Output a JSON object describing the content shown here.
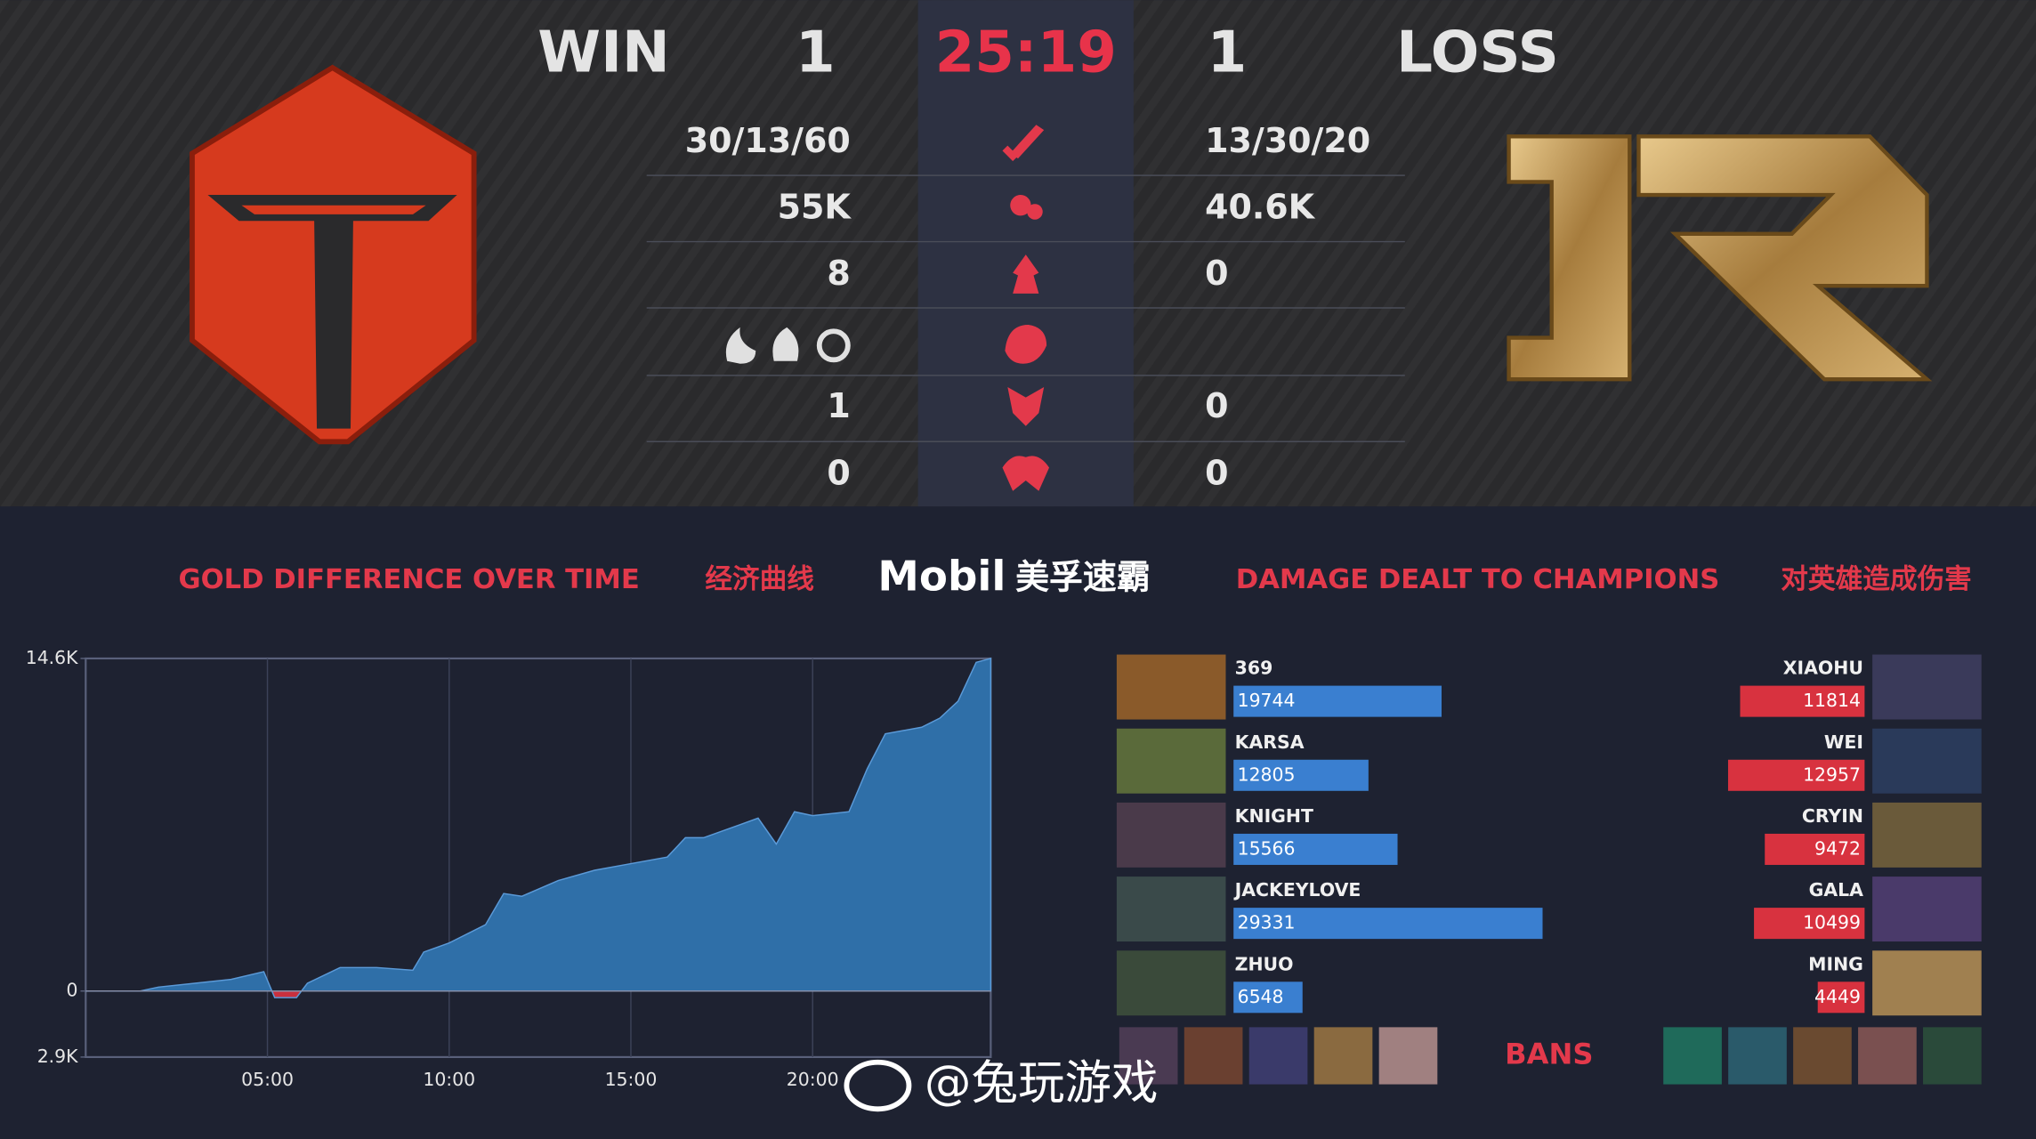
{
  "header": {
    "result_left": "WIN",
    "score_left": 1,
    "timer": "25:19",
    "score_right": 1,
    "result_right": "LOSS"
  },
  "stats": {
    "kda": {
      "left": "30/13/60",
      "right": "13/30/20"
    },
    "gold": {
      "left": "55K",
      "right": "40.6K"
    },
    "towers": {
      "left": 8,
      "right": 0
    },
    "barons": {
      "left": 1,
      "right": 0
    },
    "heralds": {
      "left": 0,
      "right": 0
    }
  },
  "sections": {
    "gold_title": "GOLD DIFFERENCE OVER TIME",
    "gold_title_cn": "经济曲线",
    "sponsor": "Mobil",
    "sponsor_cn": "美孚速霸",
    "damage_title": "DAMAGE DEALT TO CHAMPIONS",
    "damage_title_cn": "对英雄造成伤害"
  },
  "gold_chart": {
    "type": "area",
    "x": [
      0,
      1.5,
      2,
      3,
      4,
      4.9,
      5.2,
      5.8,
      6.1,
      7,
      8,
      9,
      9.3,
      10,
      11,
      11.5,
      12,
      13,
      14,
      15,
      16,
      16.5,
      17,
      18,
      18.5,
      19,
      19.5,
      20,
      21,
      21.5,
      22,
      23,
      23.5,
      24,
      24.5,
      24.9
    ],
    "values": [
      0,
      0,
      170,
      340,
      510,
      850,
      -290,
      -290,
      340,
      1030,
      1030,
      910,
      1710,
      2110,
      2910,
      4280,
      4160,
      4850,
      5300,
      5590,
      5880,
      6730,
      6730,
      7300,
      7590,
      6450,
      7870,
      7700,
      7870,
      9750,
      11290,
      11580,
      11980,
      12720,
      14430,
      14600
    ],
    "xlim": [
      0,
      24.9
    ],
    "ylim": [
      -2900,
      14600
    ],
    "xticks": [
      {
        "value": 5,
        "label": "05:00"
      },
      {
        "value": 10,
        "label": "10:00"
      },
      {
        "value": 15,
        "label": "15:00"
      },
      {
        "value": 20,
        "label": "20:00"
      }
    ],
    "yticks": [
      {
        "value": 14600,
        "label": "14.6K"
      },
      0,
      {
        "value": -2900,
        "label": "2.9K"
      }
    ],
    "color_positive": "#2f6fa8",
    "color_negative": "#c9303e"
  },
  "damage": {
    "left_color": "#3a7fd0",
    "right_color": "#d8323f",
    "left": [
      {
        "name": "369",
        "value": 19744
      },
      {
        "name": "KARSA",
        "value": 12805
      },
      {
        "name": "KNIGHT",
        "value": 15566
      },
      {
        "name": "JACKEYLOVE",
        "value": 29331
      },
      {
        "name": "ZHUO",
        "value": 6548
      }
    ],
    "right": [
      {
        "name": "XIAOHU",
        "value": 11814
      },
      {
        "name": "WEI",
        "value": 12957
      },
      {
        "name": "CRYIN",
        "value": 9472
      },
      {
        "name": "GALA",
        "value": 10499
      },
      {
        "name": "MING",
        "value": 4449
      }
    ]
  },
  "bans_label": "BANS",
  "watermark": "@兔玩游戏"
}
